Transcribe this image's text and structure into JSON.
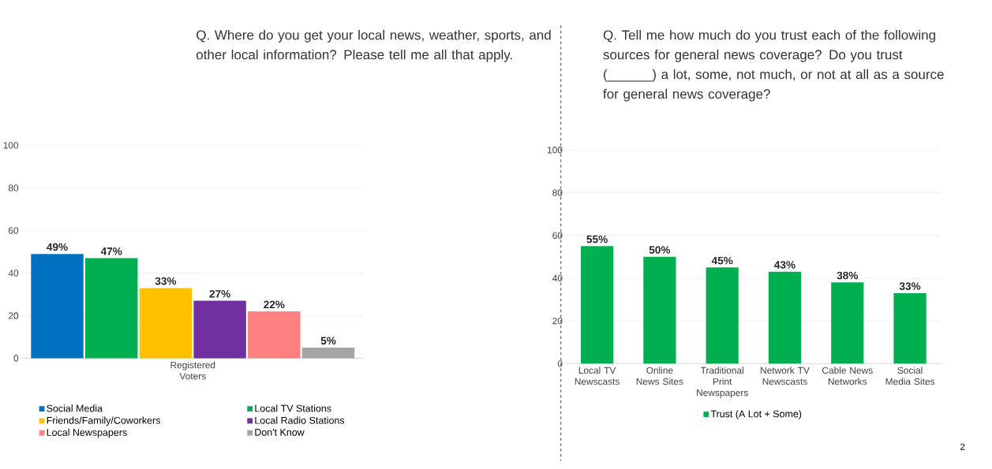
{
  "chart_data": [
    {
      "type": "bar",
      "title": "Q. Where do you get your local news, weather, sports, and other local information? Please tell me all that apply.",
      "categories": [
        "Registered Voters"
      ],
      "ylim": [
        0,
        100
      ],
      "yticks": [
        0,
        20,
        40,
        60,
        80,
        100
      ],
      "grid": "y",
      "legend": "bottom",
      "series": [
        {
          "name": "Social Media",
          "color": "#0070c0",
          "values": [
            49
          ],
          "value_labels": [
            "49%"
          ]
        },
        {
          "name": "Local TV Stations",
          "color": "#00b050",
          "values": [
            47
          ],
          "value_labels": [
            "47%"
          ]
        },
        {
          "name": "Friends/Family/Coworkers",
          "color": "#ffc000",
          "values": [
            33
          ],
          "value_labels": [
            "33%"
          ]
        },
        {
          "name": "Local Radio Stations",
          "color": "#7030a0",
          "values": [
            27
          ],
          "value_labels": [
            "27%"
          ]
        },
        {
          "name": "Local Newspapers",
          "color": "#ff8080",
          "values": [
            22
          ],
          "value_labels": [
            "22%"
          ]
        },
        {
          "name": "Don't Know",
          "color": "#a5a5a5",
          "values": [
            5
          ],
          "value_labels": [
            "5%"
          ]
        }
      ]
    },
    {
      "type": "bar",
      "title": "Q. Tell me how much do you trust each of the following sources for general news coverage? Do you trust (______) a lot, some, not much, or not at all as a source for general news coverage?",
      "categories": [
        "Local TV Newscasts",
        "Online News Sites",
        "Traditional Print Newspapers",
        "Network TV Newscasts",
        "Cable News Networks",
        "Social Media Sites"
      ],
      "ylim": [
        0,
        100
      ],
      "yticks": [
        0,
        20,
        40,
        60,
        80,
        100
      ],
      "grid": "y",
      "legend": "bottom",
      "annotations": [
        "2"
      ],
      "series": [
        {
          "name": "Trust (A Lot + Some)",
          "color": "#00b050",
          "values": [
            55,
            50,
            45,
            43,
            38,
            33
          ],
          "value_labels": [
            "55%",
            "50%",
            "45%",
            "43%",
            "38%",
            "33%"
          ]
        }
      ]
    }
  ]
}
